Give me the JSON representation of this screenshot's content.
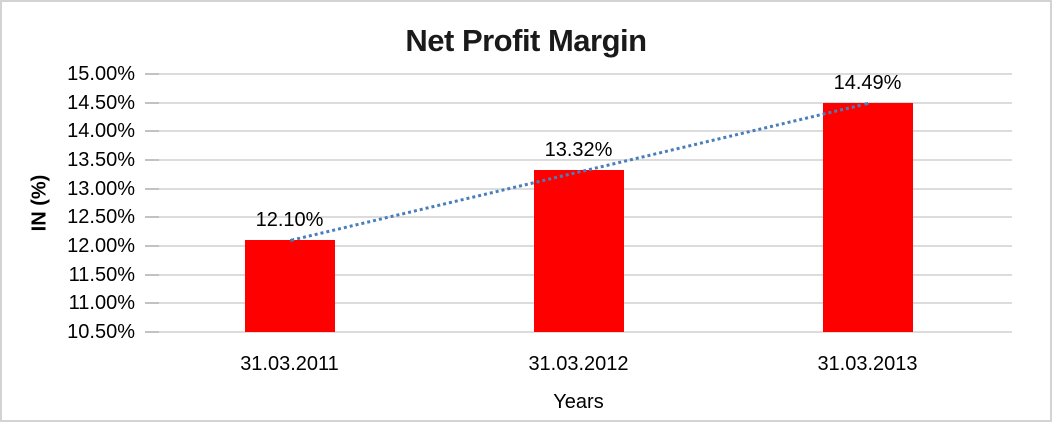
{
  "chart_data": {
    "type": "bar",
    "title": "Net Profit Margin",
    "xlabel": "Years",
    "ylabel": "IN (%)",
    "categories": [
      "31.03.2011",
      "31.03.2012",
      "31.03.2013"
    ],
    "values": [
      12.1,
      13.32,
      14.49
    ],
    "data_labels": [
      "12.10%",
      "13.32%",
      "14.49%"
    ],
    "ylim": [
      10.5,
      15.0
    ],
    "ytick_step": 0.5,
    "ytick_labels": [
      "10.50%",
      "11.00%",
      "11.50%",
      "12.00%",
      "12.50%",
      "13.00%",
      "13.50%",
      "14.00%",
      "14.50%",
      "15.00%"
    ],
    "grid": true,
    "legend": "none",
    "bar_color": "#ff0000",
    "gridline_color": "#dcdcdc",
    "trendline": {
      "type": "linear",
      "style": "dotted",
      "color": "#4a7ebb"
    }
  }
}
